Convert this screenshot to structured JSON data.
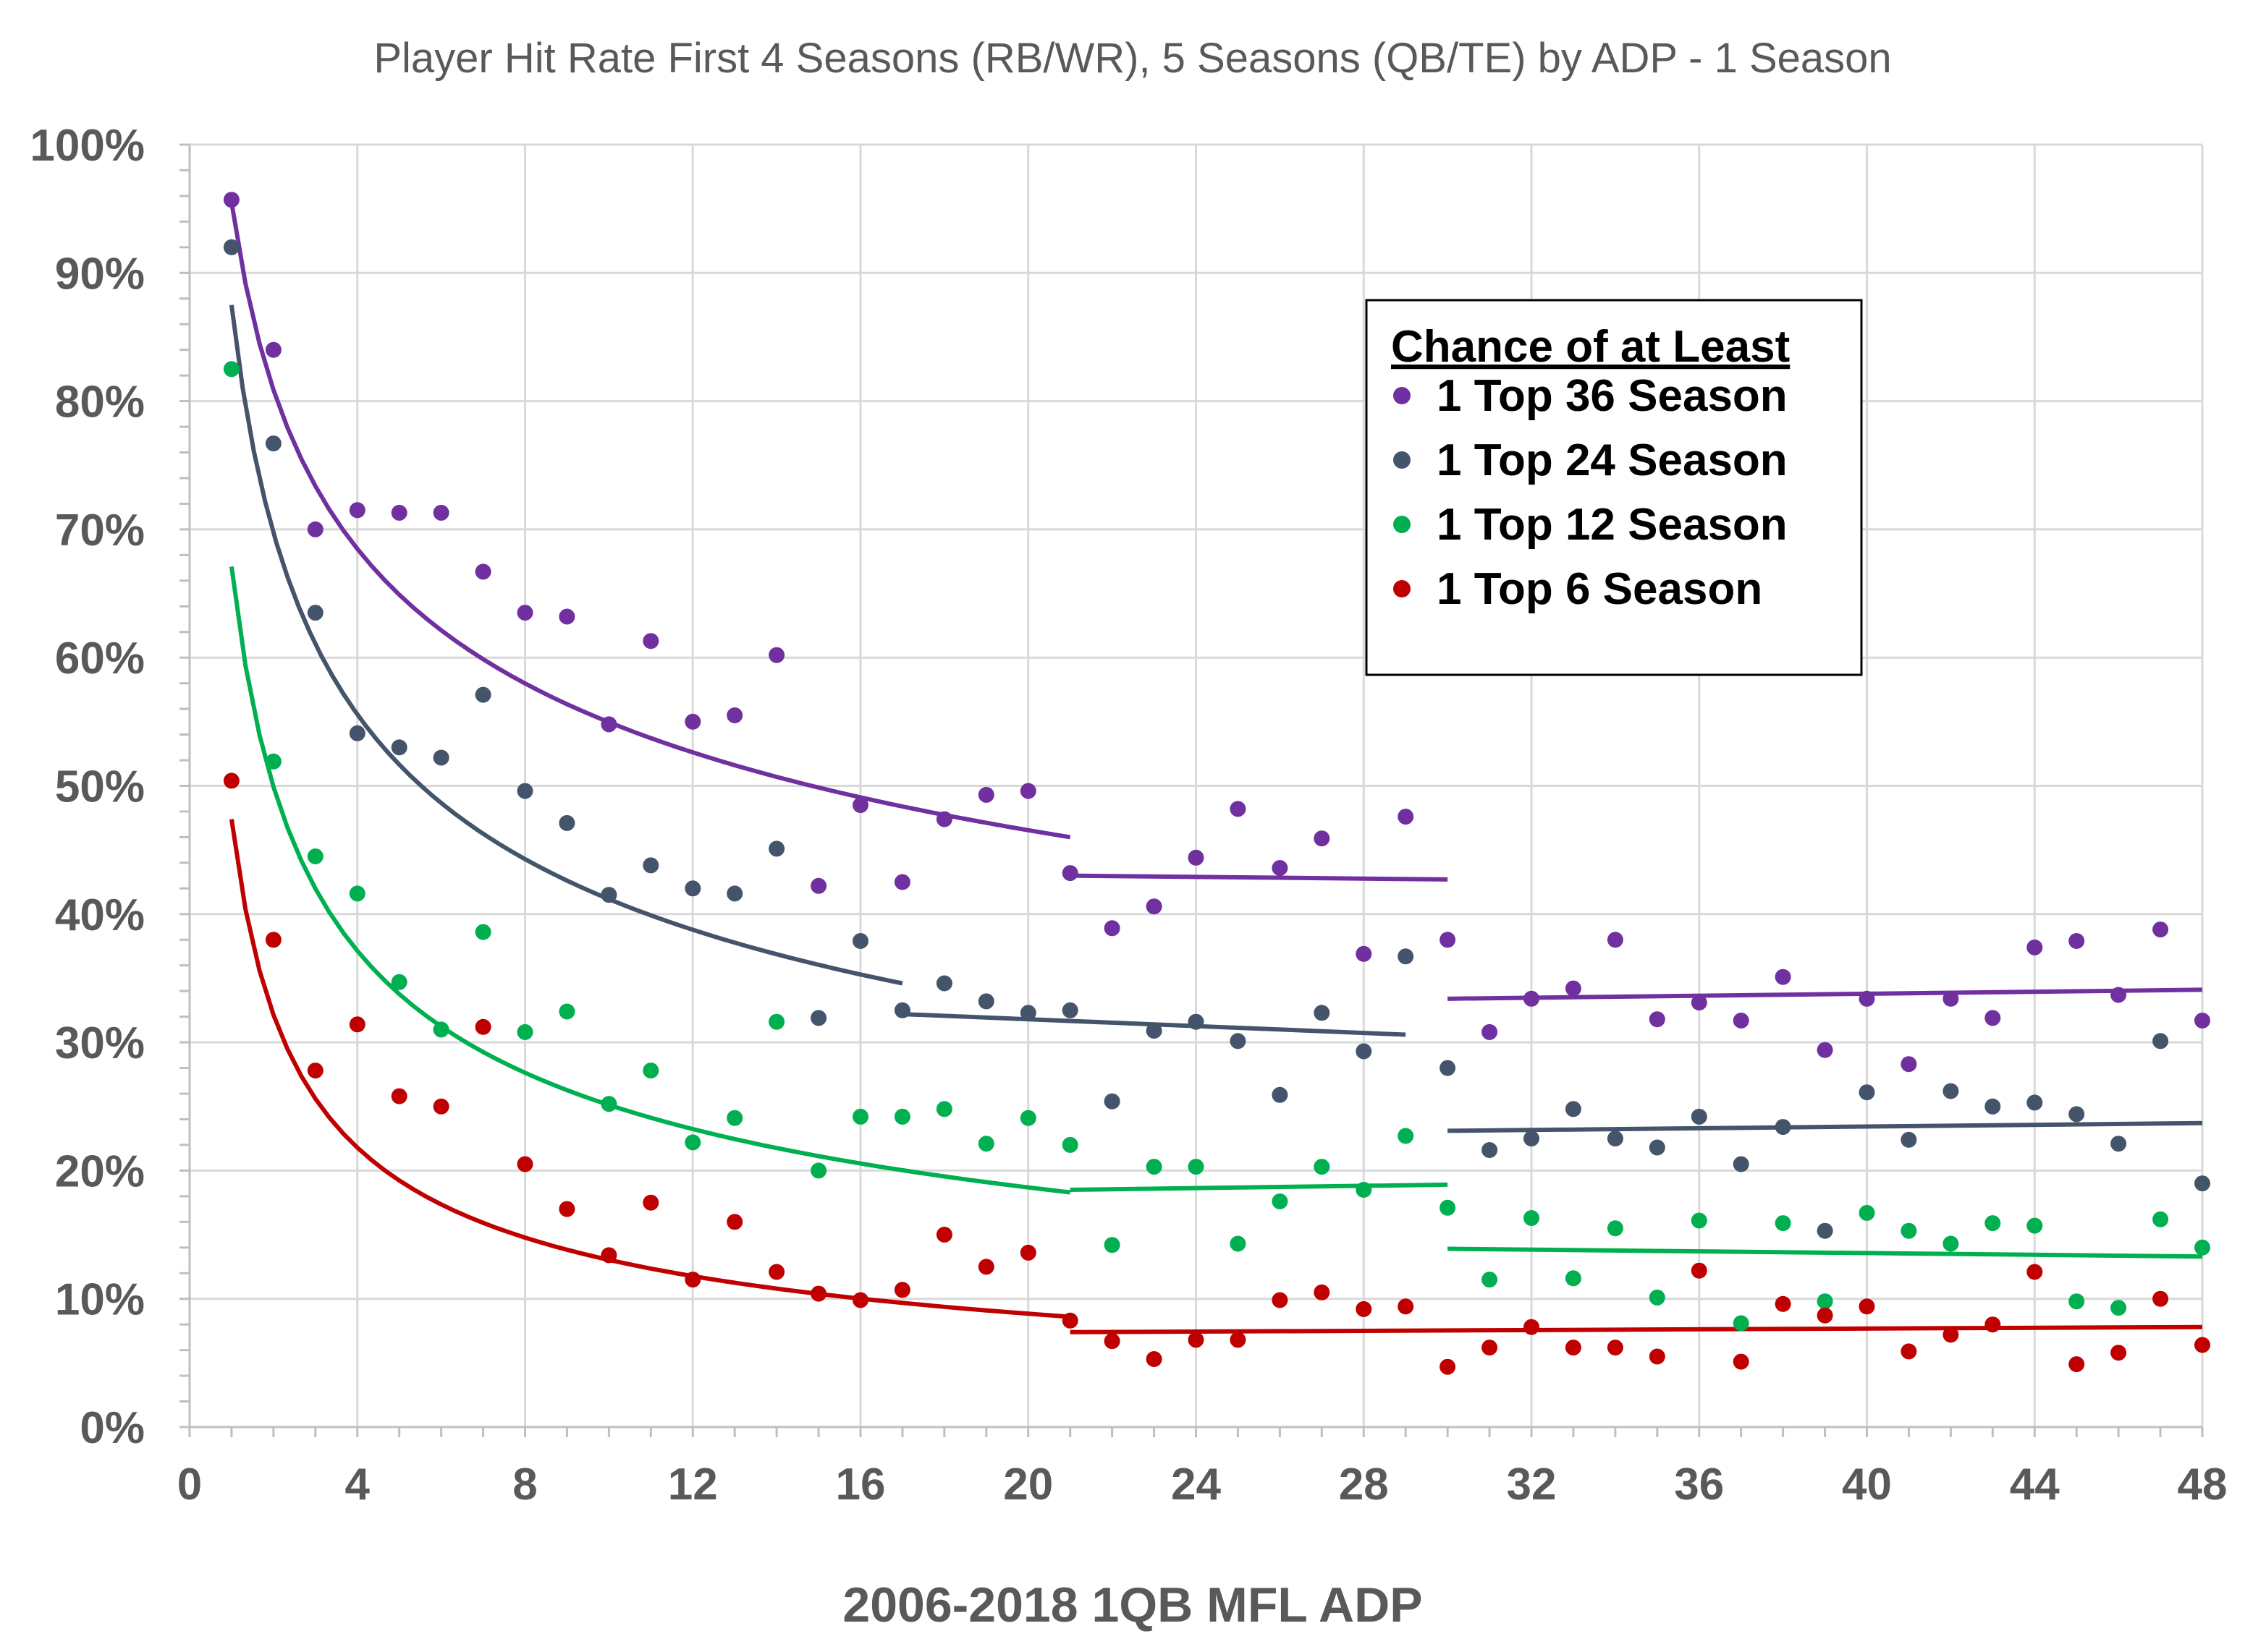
{
  "chart_data": {
    "type": "scatter",
    "title": "Player Hit Rate First 4 Seasons (RB/WR), 5 Seasons (QB/TE) by ADP - 1 Season",
    "xlabel": "2006-2018 1QB MFL ADP",
    "ylabel": "",
    "xlim": [
      0,
      48
    ],
    "ylim": [
      0,
      100
    ],
    "x_ticks": [
      "0",
      "4",
      "8",
      "12",
      "16",
      "20",
      "24",
      "28",
      "32",
      "36",
      "40",
      "44",
      "48"
    ],
    "y_ticks": [
      "0%",
      "10%",
      "20%",
      "30%",
      "40%",
      "50%",
      "60%",
      "70%",
      "80%",
      "90%",
      "100%"
    ],
    "grid": true,
    "legend": {
      "title": "Chance of at Least",
      "position": "top-right"
    },
    "x": [
      1,
      2,
      3,
      4,
      5,
      6,
      7,
      8,
      9,
      10,
      11,
      12,
      13,
      14,
      15,
      16,
      17,
      18,
      19,
      20,
      21,
      22,
      23,
      24,
      25,
      26,
      27,
      28,
      29,
      30,
      31,
      32,
      33,
      34,
      35,
      36,
      37,
      38,
      39,
      40,
      41,
      42,
      43,
      44,
      45,
      46,
      47,
      48
    ],
    "series": [
      {
        "name": "1 Top 36 Season",
        "color": "#7030A0",
        "values": [
          95.7,
          84,
          70,
          71.5,
          71.3,
          71.3,
          66.7,
          63.5,
          63.2,
          54.8,
          61.3,
          55,
          55.5,
          60.2,
          42.2,
          48.5,
          42.5,
          47.4,
          49.3,
          49.6,
          43.2,
          38.9,
          40.6,
          44.4,
          48.2,
          43.6,
          45.9,
          36.9,
          47.6,
          38,
          30.8,
          33.4,
          34.2,
          38,
          31.8,
          33.1,
          31.7,
          35.1,
          29.4,
          33.4,
          28.3,
          33.4,
          31.9,
          37.4,
          37.9,
          33.7,
          38.8,
          31.7
        ],
        "trend_segments": [
          {
            "x": [
              1,
              21
            ],
            "y": [
              95.5,
              46
            ]
          },
          {
            "x": [
              21,
              30
            ],
            "y": [
              43,
              42.7
            ]
          },
          {
            "x": [
              30,
              48
            ],
            "y": [
              33.4,
              34.1
            ]
          }
        ]
      },
      {
        "name": "1 Top 24 Season",
        "color": "#44546A",
        "values": [
          92,
          76.7,
          63.5,
          54.1,
          53,
          52.2,
          57.1,
          49.6,
          47.1,
          41.5,
          43.8,
          42,
          41.6,
          45.1,
          31.9,
          37.9,
          32.5,
          34.6,
          33.2,
          32.3,
          32.5,
          25.4,
          30.9,
          31.6,
          30.1,
          25.9,
          32.3,
          29.3,
          36.7,
          28,
          21.6,
          22.5,
          24.8,
          22.5,
          21.8,
          24.2,
          20.5,
          23.4,
          15.3,
          26.1,
          22.4,
          26.2,
          25,
          25.3,
          24.4,
          22.1,
          30.1,
          19
        ],
        "trend_segments": [
          {
            "x": [
              1,
              17
            ],
            "y": [
              87.5,
              34.6
            ]
          },
          {
            "x": [
              17,
              29
            ],
            "y": [
              32.2,
              30.6
            ]
          },
          {
            "x": [
              30,
              48
            ],
            "y": [
              23.1,
              23.7
            ]
          }
        ]
      },
      {
        "name": "1 Top 12 Season",
        "color": "#00B050",
        "values": [
          82.5,
          51.9,
          44.5,
          41.6,
          34.7,
          31,
          38.6,
          30.8,
          32.4,
          25.2,
          27.8,
          22.2,
          24.1,
          31.6,
          20,
          24.2,
          24.2,
          24.8,
          22.1,
          24.1,
          22,
          14.2,
          20.3,
          20.3,
          14.3,
          17.6,
          20.3,
          18.5,
          22.7,
          17.1,
          11.5,
          16.3,
          11.6,
          15.5,
          10.1,
          16.1,
          8.1,
          15.9,
          9.8,
          16.7,
          15.3,
          14.3,
          15.9,
          15.7,
          9.8,
          9.3,
          16.2,
          14
        ],
        "trend_segments": [
          {
            "x": [
              1,
              21
            ],
            "y": [
              67.1,
              18.3
            ]
          },
          {
            "x": [
              21,
              30
            ],
            "y": [
              18.5,
              18.9
            ]
          },
          {
            "x": [
              30,
              48
            ],
            "y": [
              13.9,
              13.3
            ]
          }
        ]
      },
      {
        "name": "1 Top 6 Season",
        "color": "#C00000",
        "values": [
          50.4,
          38,
          27.8,
          31.4,
          25.8,
          25,
          31.2,
          20.5,
          17,
          13.4,
          17.5,
          11.5,
          16,
          12.1,
          10.4,
          9.9,
          10.7,
          15,
          12.5,
          13.6,
          8.3,
          6.7,
          5.3,
          6.8,
          6.8,
          9.9,
          10.5,
          9.2,
          9.4,
          4.7,
          6.2,
          7.8,
          6.2,
          6.2,
          5.5,
          12.2,
          5.1,
          9.6,
          8.7,
          9.4,
          5.9,
          7.2,
          8,
          12.1,
          4.9,
          5.8,
          10,
          6.4
        ],
        "trend_segments": [
          {
            "x": [
              1,
              21
            ],
            "y": [
              47.4,
              8.6
            ]
          },
          {
            "x": [
              21,
              48
            ],
            "y": [
              7.4,
              7.8
            ]
          }
        ]
      }
    ]
  }
}
